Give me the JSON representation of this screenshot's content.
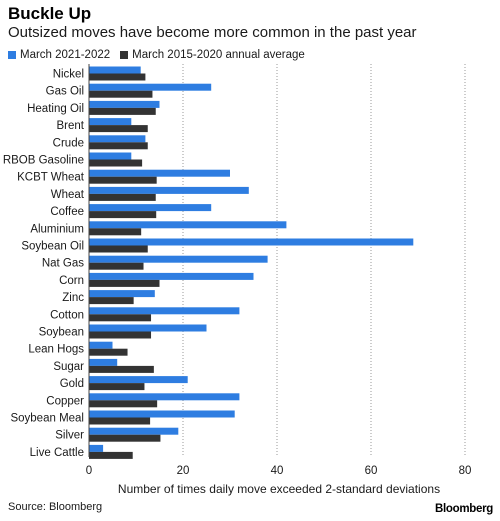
{
  "chart_data": {
    "type": "bar",
    "orientation": "horizontal",
    "title": "Buckle Up",
    "subtitle": "Outsized moves have become more common in the past year",
    "xlabel": "Number of times daily move exceeded 2-standard deviations",
    "ylabel": "",
    "xlim": [
      0,
      80
    ],
    "xticks": [
      0,
      20,
      40,
      60,
      80
    ],
    "grid": true,
    "legend_position": "top-left",
    "categories": [
      "Nickel",
      "Gas Oil",
      "Heating Oil",
      "Brent",
      "Crude",
      "RBOB Gasoline",
      "KCBT Wheat",
      "Wheat",
      "Coffee",
      "Aluminium",
      "Soybean Oil",
      "Nat Gas",
      "Corn",
      "Zinc",
      "Cotton",
      "Soybean",
      "Lean Hogs",
      "Sugar",
      "Gold",
      "Copper",
      "Soybean Meal",
      "Silver",
      "Live Cattle"
    ],
    "series": [
      {
        "name": "March 2021-2022",
        "color": "#2e7de1",
        "values": [
          11,
          26,
          15,
          9,
          12,
          9,
          30,
          34,
          26,
          42,
          69,
          38,
          35,
          14,
          32,
          25,
          5,
          6,
          21,
          32,
          31,
          19,
          3
        ]
      },
      {
        "name": "March 2015-2020 annual average",
        "color": "#333333",
        "values": [
          12,
          13.5,
          14.2,
          12.5,
          12.5,
          11.3,
          14.4,
          14.2,
          14.3,
          11.1,
          12.5,
          11.6,
          15,
          9.5,
          13.2,
          13.2,
          8.2,
          13.8,
          11.8,
          14.5,
          13,
          15.2,
          9.3
        ]
      }
    ]
  },
  "footer": {
    "source": "Source: Bloomberg",
    "brand": "Bloomberg"
  }
}
